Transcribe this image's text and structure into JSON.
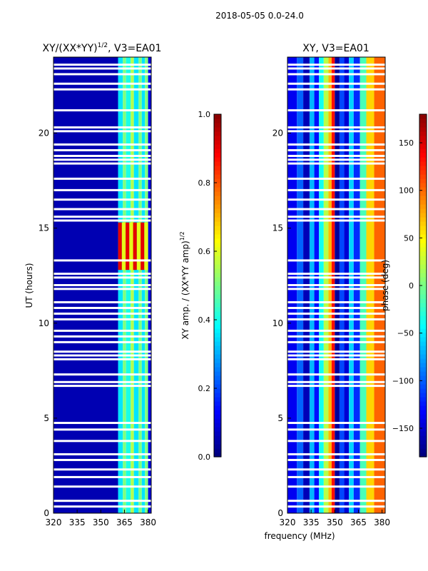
{
  "figure": {
    "suptitle": "2018-05-05 0.0-24.0",
    "shared_xlabel": "frequency (MHz)"
  },
  "colors": {
    "jet": [
      "#00007f",
      "#0000ff",
      "#007fff",
      "#00ffff",
      "#7fff7f",
      "#ffff00",
      "#ff7f00",
      "#ff0000",
      "#7f0000"
    ],
    "background": "#ffffff",
    "axis": "#000000"
  },
  "chart_data": [
    {
      "type": "heatmap",
      "name": "xy-normalized-amplitude",
      "title_main": "XY/(XX*YY)",
      "title_exp": "1/2",
      "title_tail": ", V3=EA01",
      "xlabel": "",
      "ylabel": "UT (hours)",
      "xlim": [
        320,
        382
      ],
      "ylim": [
        0,
        24
      ],
      "xticks": [
        320,
        335,
        350,
        365,
        380
      ],
      "yticks": [
        0,
        5,
        10,
        15,
        20
      ],
      "colorbar": {
        "label_main": "XY amp. / (XX*YY amp)",
        "label_exp": "1/2",
        "vmin": 0.0,
        "vmax": 1.0,
        "ticks": [
          "0.0",
          "0.2",
          "0.4",
          "0.6",
          "0.8",
          "1.0"
        ],
        "tick_values": [
          0.0,
          0.2,
          0.4,
          0.6,
          0.8,
          1.0
        ]
      },
      "freq_bands": [
        {
          "from": 320,
          "to": 361,
          "value": 0.05
        },
        {
          "from": 361,
          "to": 364,
          "value": 0.35
        },
        {
          "from": 364,
          "to": 366,
          "value": 0.5
        },
        {
          "from": 366,
          "to": 369,
          "value": 0.4
        },
        {
          "from": 369,
          "to": 371,
          "value": 0.55
        },
        {
          "from": 371,
          "to": 374,
          "value": 0.35
        },
        {
          "from": 374,
          "to": 376,
          "value": 0.5
        },
        {
          "from": 376,
          "to": 378,
          "value": 0.35
        },
        {
          "from": 378,
          "to": 380,
          "value": 0.5
        },
        {
          "from": 380,
          "to": 382,
          "value": 0.1
        }
      ],
      "hot_zone": {
        "t_from": 12.8,
        "t_to": 15.3,
        "f_from": 361,
        "f_to": 380,
        "value": 0.9
      }
    },
    {
      "type": "heatmap",
      "name": "xy-phase",
      "title_main": "XY, V3=EA01",
      "xlabel": "frequency (MHz)",
      "ylabel": "",
      "xlim": [
        320,
        382
      ],
      "ylim": [
        0,
        24
      ],
      "xticks": [
        320,
        335,
        350,
        365,
        380
      ],
      "yticks": [
        0,
        5,
        10,
        15,
        20
      ],
      "colorbar": {
        "label_main": "phase (deg)",
        "vmin": -180,
        "vmax": 180,
        "ticks": [
          "150",
          "100",
          "50",
          "0",
          "−50",
          "−100",
          "−150"
        ],
        "tick_values": [
          150,
          100,
          50,
          0,
          -50,
          -100,
          -150
        ]
      },
      "freq_bands": [
        {
          "from": 320,
          "to": 326,
          "value": -140
        },
        {
          "from": 326,
          "to": 330,
          "value": -100
        },
        {
          "from": 330,
          "to": 334,
          "value": -160
        },
        {
          "from": 334,
          "to": 337,
          "value": -70
        },
        {
          "from": 337,
          "to": 340,
          "value": -130
        },
        {
          "from": 340,
          "to": 343,
          "value": -40
        },
        {
          "from": 343,
          "to": 346,
          "value": 20
        },
        {
          "from": 346,
          "to": 348,
          "value": 70
        },
        {
          "from": 348,
          "to": 350,
          "value": 130
        },
        {
          "from": 350,
          "to": 353,
          "value": -170
        },
        {
          "from": 353,
          "to": 356,
          "value": -110
        },
        {
          "from": 356,
          "to": 359,
          "value": -150
        },
        {
          "from": 359,
          "to": 362,
          "value": -60
        },
        {
          "from": 362,
          "to": 366,
          "value": -120
        },
        {
          "from": 366,
          "to": 370,
          "value": -20
        },
        {
          "from": 370,
          "to": 375,
          "value": 60
        },
        {
          "from": 375,
          "to": 382,
          "value": 100
        }
      ]
    }
  ],
  "gaps_ut": [
    0.35,
    0.65,
    1.4,
    1.9,
    2.3,
    2.8,
    3.1,
    3.8,
    4.4,
    4.75,
    6.7,
    6.9,
    7.3,
    8.1,
    8.3,
    8.5,
    9.0,
    9.3,
    9.6,
    10.2,
    10.5,
    10.8,
    11.1,
    11.8,
    12.0,
    12.4,
    12.6,
    13.3,
    15.4,
    15.6,
    16.0,
    16.5,
    17.0,
    17.6,
    18.4,
    18.6,
    18.8,
    19.1,
    19.4,
    20.1,
    20.3,
    21.2,
    22.3,
    22.6,
    23.1,
    23.4,
    23.6
  ]
}
